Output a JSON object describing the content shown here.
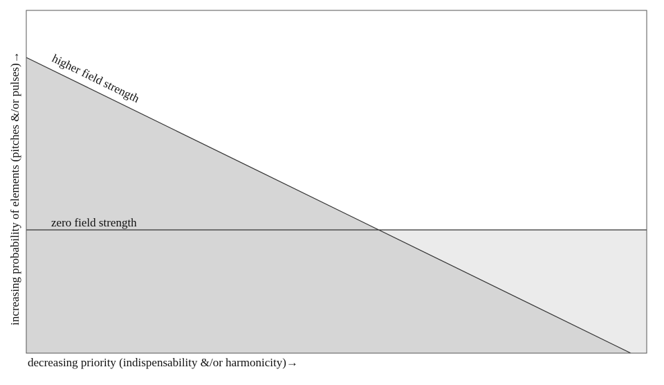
{
  "labels": {
    "higher": "higher field strength",
    "zero": "zero field strength"
  },
  "axes": {
    "x": "decreasing priority (indispensability &/or harmonicity)→",
    "y": "increasing probability of elements (pitches &/or pulses)→"
  }
}
